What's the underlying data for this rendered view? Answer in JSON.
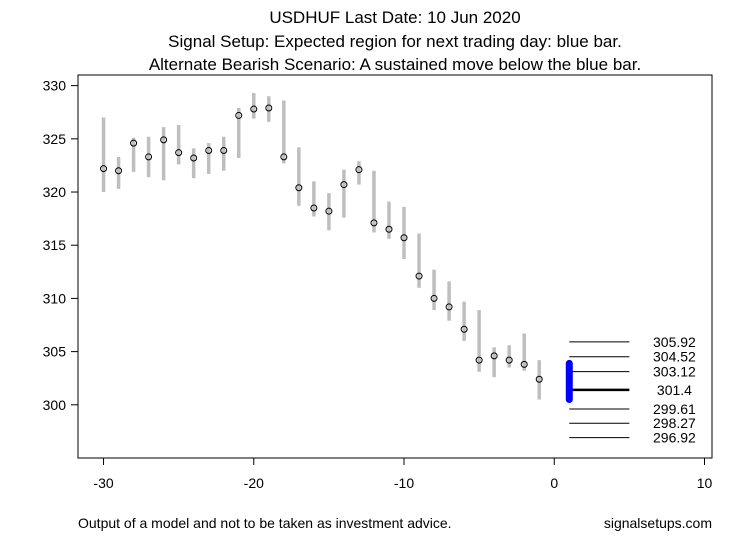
{
  "chart_data": {
    "type": "range-bar",
    "title": [
      "USDHUF Last Date: 10 Jun 2020",
      "Signal Setup: Expected region for next trading day: blue bar.",
      "Alternate Bearish Scenario: A sustained move below the blue bar."
    ],
    "xlabel": "",
    "ylabel": "",
    "xlim": [
      -31.7,
      10.5
    ],
    "ylim": [
      295,
      331
    ],
    "xticks": [
      -30,
      -20,
      -10,
      0,
      10
    ],
    "yticks": [
      300,
      305,
      310,
      315,
      320,
      325,
      330
    ],
    "grid": false,
    "x": [
      -30,
      -29,
      -28,
      -27,
      -26,
      -25,
      -24,
      -23,
      -22,
      -21,
      -20,
      -19,
      -18,
      -17,
      -16,
      -15,
      -14,
      -13,
      -12,
      -11,
      -10,
      -9,
      -8,
      -7,
      -6,
      -5,
      -4,
      -3,
      -2,
      -1
    ],
    "low": [
      320.0,
      320.3,
      321.9,
      321.4,
      321.1,
      322.6,
      321.3,
      321.7,
      322.0,
      323.2,
      326.9,
      326.6,
      322.7,
      318.7,
      317.7,
      316.4,
      317.6,
      320.7,
      316.2,
      315.6,
      313.7,
      311.0,
      308.9,
      307.9,
      306.0,
      303.1,
      302.6,
      303.5,
      303.2,
      300.5
    ],
    "high": [
      327.0,
      323.3,
      325.1,
      325.2,
      326.1,
      326.3,
      324.1,
      324.6,
      325.2,
      327.9,
      329.3,
      329.0,
      328.6,
      324.2,
      321.0,
      319.9,
      322.1,
      322.9,
      322.0,
      319.1,
      318.6,
      316.1,
      312.7,
      311.6,
      309.7,
      308.9,
      305.4,
      305.6,
      306.7,
      304.2
    ],
    "close": [
      322.2,
      322.0,
      324.6,
      323.3,
      324.9,
      323.7,
      323.2,
      323.9,
      323.9,
      327.2,
      327.8,
      327.9,
      323.3,
      320.4,
      318.5,
      318.2,
      320.7,
      322.1,
      317.1,
      316.5,
      315.7,
      312.1,
      310.0,
      309.2,
      307.1,
      304.2,
      304.6,
      304.2,
      303.8,
      302.4
    ],
    "signal_bar": {
      "x": 1,
      "low": 300.5,
      "high": 303.9,
      "color": "#0000ff"
    },
    "levels": [
      {
        "value": 305.92,
        "label": "305.92",
        "bold": false
      },
      {
        "value": 304.52,
        "label": "304.52",
        "bold": false
      },
      {
        "value": 303.12,
        "label": "303.12",
        "bold": false
      },
      {
        "value": 301.4,
        "label": "301.4",
        "bold": true
      },
      {
        "value": 299.61,
        "label": "299.61",
        "bold": false
      },
      {
        "value": 298.27,
        "label": "298.27",
        "bold": false
      },
      {
        "value": 296.92,
        "label": "296.92",
        "bold": false
      }
    ],
    "bar_color": "#bebebe"
  },
  "footer": {
    "disclaimer": "Output of a model and not to be taken as investment advice.",
    "site": "signalsetups.com"
  }
}
